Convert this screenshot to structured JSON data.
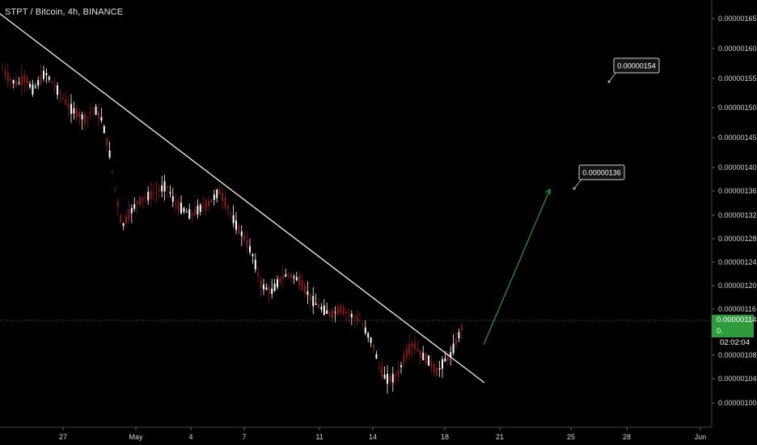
{
  "header": {
    "symbol_line": "STPT / Bitcoin, 4h, BINANCE"
  },
  "price_axis": {
    "labels": [
      "0.00000165",
      "0.00000160",
      "0.00000155",
      "0.00000150",
      "0.00000145",
      "0.00000140",
      "0.00000136",
      "0.00000132",
      "0.00000128",
      "0.00000124",
      "0.00000120",
      "0.00000116",
      "0.00000108",
      "0.00000104",
      "0.00000100"
    ],
    "last_price": "0.00000114",
    "countdown": "02:02:04",
    "countdown_prefix": "0."
  },
  "time_axis": {
    "labels": [
      "27",
      "May",
      "4",
      "7",
      "11",
      "14",
      "18",
      "21",
      "25",
      "28",
      "Jun"
    ]
  },
  "annotations": {
    "target_1": "0.00000154",
    "target_2": "0.00000136"
  },
  "colors": {
    "background": "#000000",
    "up_candle": "#ffffff",
    "down_candle": "#8b1a1a",
    "trendline": "#ffffff",
    "projection_arrow": "#2e9b3c",
    "last_price_tag": "#2e9b3c"
  },
  "chart_data": {
    "type": "candlestick",
    "title": "STPT / Bitcoin, 4h, BINANCE",
    "timeframe": "4h",
    "exchange": "BINANCE",
    "x_ticks": [
      "27",
      "May",
      "4",
      "7",
      "11",
      "14",
      "18",
      "21",
      "25",
      "28",
      "Jun"
    ],
    "y_ticks": [
      1.65e-06,
      1.6e-06,
      1.55e-06,
      1.5e-06,
      1.45e-06,
      1.4e-06,
      1.36e-06,
      1.32e-06,
      1.28e-06,
      1.24e-06,
      1.2e-06,
      1.16e-06,
      1.08e-06,
      1.04e-06,
      1e-06
    ],
    "ylim": [
      9.8e-07,
      1.67e-06
    ],
    "last_price": 1.14e-06,
    "price_path": [
      [
        0,
        1.57e-06
      ],
      [
        10,
        1.55e-06
      ],
      [
        20,
        1.54e-06
      ],
      [
        30,
        1.55e-06
      ],
      [
        40,
        1.53e-06
      ],
      [
        55,
        1.56e-06
      ],
      [
        65,
        1.54e-06
      ],
      [
        75,
        1.52e-06
      ],
      [
        85,
        1.5e-06
      ],
      [
        95,
        1.49e-06
      ],
      [
        105,
        1.48e-06
      ],
      [
        115,
        1.5e-06
      ],
      [
        125,
        1.48e-06
      ],
      [
        135,
        1.42e-06
      ],
      [
        142,
        1.36e-06
      ],
      [
        150,
        1.3e-06
      ],
      [
        158,
        1.32e-06
      ],
      [
        168,
        1.34e-06
      ],
      [
        180,
        1.35e-06
      ],
      [
        195,
        1.36e-06
      ],
      [
        205,
        1.37e-06
      ],
      [
        215,
        1.34e-06
      ],
      [
        225,
        1.33e-06
      ],
      [
        235,
        1.32e-06
      ],
      [
        245,
        1.33e-06
      ],
      [
        258,
        1.34e-06
      ],
      [
        270,
        1.36e-06
      ],
      [
        282,
        1.33e-06
      ],
      [
        292,
        1.3e-06
      ],
      [
        302,
        1.28e-06
      ],
      [
        312,
        1.25e-06
      ],
      [
        322,
        1.2e-06
      ],
      [
        335,
        1.19e-06
      ],
      [
        345,
        1.21e-06
      ],
      [
        355,
        1.22e-06
      ],
      [
        368,
        1.21e-06
      ],
      [
        378,
        1.19e-06
      ],
      [
        388,
        1.17e-06
      ],
      [
        398,
        1.16e-06
      ],
      [
        408,
        1.15e-06
      ],
      [
        420,
        1.16e-06
      ],
      [
        432,
        1.15e-06
      ],
      [
        444,
        1.14e-06
      ],
      [
        452,
        1.12e-06
      ],
      [
        460,
        1.1e-06
      ],
      [
        468,
        1.06e-06
      ],
      [
        476,
        1.04e-06
      ],
      [
        484,
        1.04e-06
      ],
      [
        492,
        1.05e-06
      ],
      [
        500,
        1.08e-06
      ],
      [
        510,
        1.1e-06
      ],
      [
        520,
        1.08e-06
      ],
      [
        530,
        1.07e-06
      ],
      [
        540,
        1.05e-06
      ],
      [
        548,
        1.07e-06
      ],
      [
        556,
        1.08e-06
      ],
      [
        562,
        1.1e-06
      ],
      [
        568,
        1.12e-06
      ],
      [
        573,
        1.14e-06
      ]
    ],
    "trendline": {
      "from": [
        "start",
        1.63e-06
      ],
      "to": [
        "after 18",
        1.03e-06
      ]
    },
    "projection": {
      "from": 1.09e-06,
      "to": 1.36e-06
    },
    "price_callouts": [
      "0.00000154",
      "0.00000136"
    ]
  }
}
